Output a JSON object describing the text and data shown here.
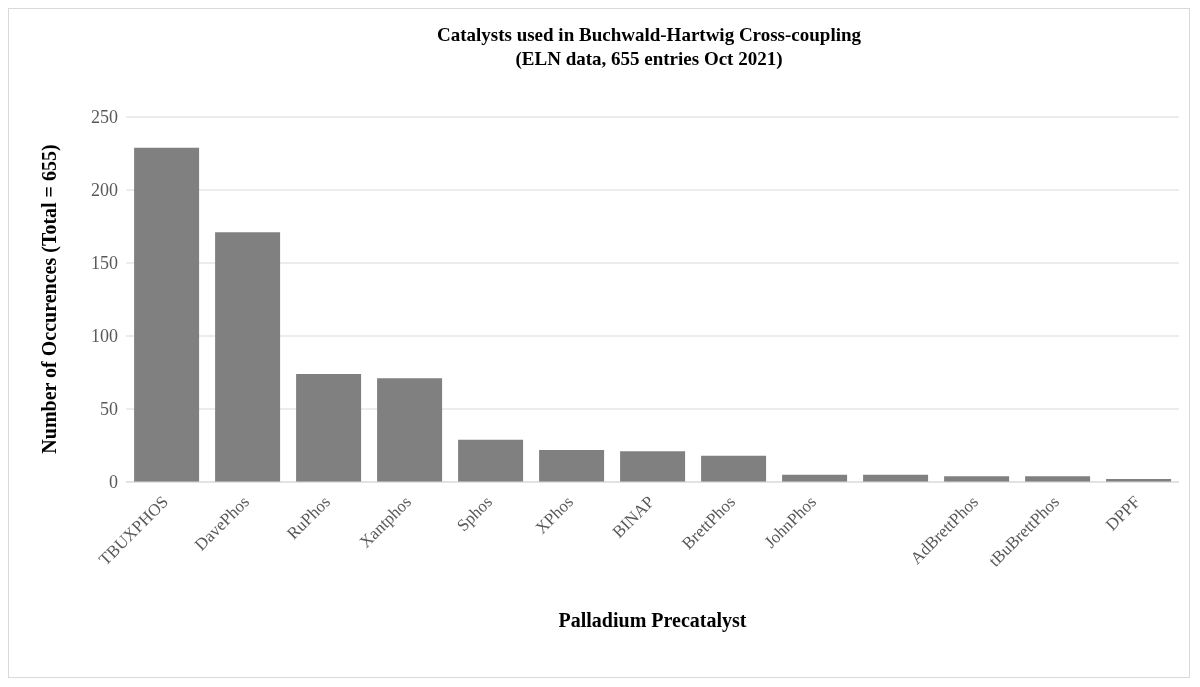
{
  "chart_data": {
    "type": "bar",
    "title": "Catalysts used in Buchwald-Hartwig Cross-coupling",
    "subtitle": "(ELN data, 655 entries Oct 2021)",
    "xlabel": "Palladium Precatalyst",
    "ylabel": "Number of Occurences (Total = 655)",
    "categories": [
      "TBUXPHOS",
      "DavePhos",
      "RuPhos",
      "Xantphos",
      "Sphos",
      "XPhos",
      "BINAP",
      "BrettPhos",
      "JohnPhos",
      null,
      "AdBrettPhos",
      "tBuBrettPhos",
      "DPPF"
    ],
    "values": [
      229,
      171,
      74,
      71,
      29,
      22,
      21,
      18,
      5,
      5,
      4,
      4,
      2
    ],
    "color": "#808080",
    "ylim": [
      0,
      250
    ],
    "yticks": [
      0,
      50,
      100,
      150,
      200,
      250
    ],
    "grid": "y",
    "legend": false
  }
}
